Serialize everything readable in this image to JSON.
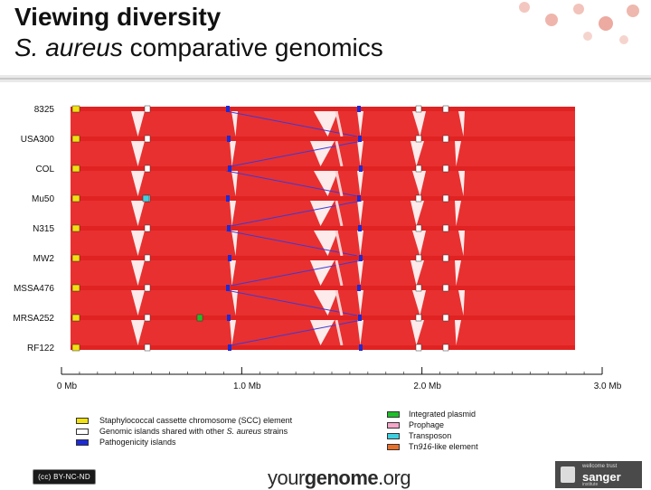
{
  "title": {
    "line1": "Viewing diversity",
    "line2_italic": "S. aureus",
    "line2_rest": " comparative genomics"
  },
  "strains": [
    "8325",
    "USA300",
    "COL",
    "Mu50",
    "N315",
    "MW2",
    "MSSA476",
    "MRSA252",
    "RF122"
  ],
  "axis": {
    "ticks": [
      "0 Mb",
      "1.0 Mb",
      "2.0 Mb",
      "3.0 Mb"
    ],
    "tick_values_mb": [
      0,
      1.0,
      2.0,
      3.0
    ]
  },
  "legend_left": [
    {
      "label": "Staphylococcal cassette chromosome (SCC) element",
      "color": "#f1e10f"
    },
    {
      "label_pre": "Genomic islands shared with other ",
      "label_italic": "S. aureus",
      "label_post": " strains",
      "color": "#ffffff"
    },
    {
      "label": "Pathogenicity islands",
      "color": "#1c2bd6"
    }
  ],
  "legend_right": [
    {
      "label": "Integrated plasmid",
      "color": "#1fbf2a"
    },
    {
      "label": "Prophage",
      "color": "#f5a6c9"
    },
    {
      "label": "Transposon",
      "color": "#3fd0e0"
    },
    {
      "label_pre": "Tn",
      "label_italic": "916",
      "label_post": "-like element",
      "color": "#e8702a"
    }
  ],
  "footer": {
    "cc": "(cc) BY-NC-ND",
    "brand_pre": "your",
    "brand_bold": "genome",
    "brand_post": ".org",
    "sanger_small": "wellcome trust",
    "sanger_name": "sanger",
    "sanger_inst": "institute"
  },
  "colors": {
    "genome_bar": "#e02222",
    "synteny": "#e83030",
    "inversion": "#3a3ad8",
    "background": "#ffffff"
  }
}
